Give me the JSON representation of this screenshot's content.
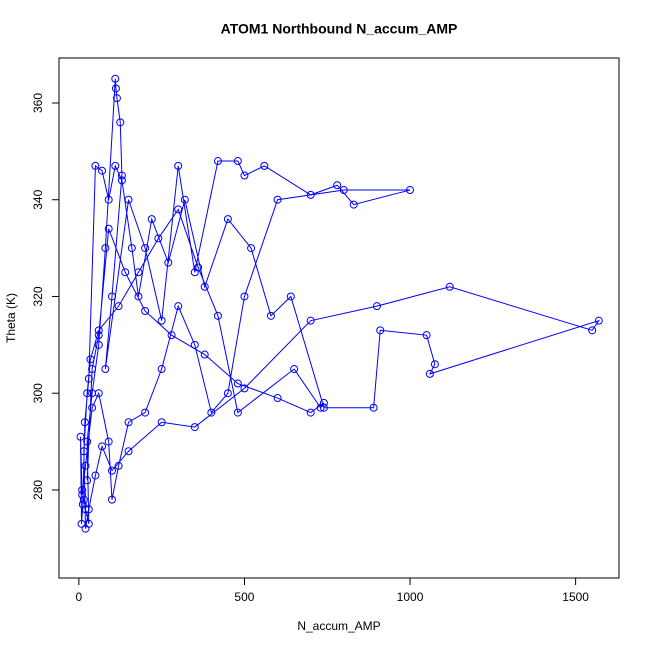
{
  "chart_data": {
    "type": "line-points",
    "title": "ATOM1 Northbound N_accum_AMP",
    "x_label": "N_accum_AMP",
    "y_label": "Theta (K)",
    "color": "#0000ff",
    "x": [
      10,
      15,
      20,
      30,
      25,
      40,
      60,
      80,
      110,
      112,
      115,
      125,
      130,
      100,
      80,
      150,
      200,
      250,
      300,
      350,
      420,
      480,
      500,
      560,
      700,
      780,
      830,
      1000,
      800,
      600,
      500,
      450,
      400,
      350,
      300,
      250,
      200,
      150,
      120,
      100,
      90,
      60,
      40,
      20,
      10,
      5,
      8,
      12,
      18,
      30,
      50,
      70,
      90,
      110,
      130,
      160,
      180,
      220,
      270,
      320,
      380,
      450,
      520,
      580,
      640,
      740,
      890,
      910,
      1050,
      1075,
      1060,
      1570,
      1550,
      1120,
      900,
      700,
      500,
      350,
      250,
      150,
      100,
      70,
      50,
      30,
      20,
      15,
      25,
      35,
      60,
      120,
      180,
      240,
      300,
      360,
      420,
      480,
      650,
      730,
      740,
      700,
      600,
      480,
      380,
      280,
      200,
      140,
      90,
      60,
      40,
      25
    ],
    "values": [
      280,
      278,
      276,
      273,
      290,
      300,
      310,
      330,
      365,
      363,
      361,
      356,
      345,
      320,
      305,
      340,
      330,
      315,
      347,
      325,
      348,
      348,
      345,
      347,
      341,
      343,
      339,
      342,
      342,
      340,
      320,
      300,
      296,
      310,
      318,
      305,
      296,
      294,
      285,
      278,
      290,
      300,
      297,
      285,
      279,
      291,
      273,
      277,
      294,
      303,
      347,
      346,
      340,
      347,
      344,
      330,
      320,
      336,
      327,
      340,
      322,
      336,
      330,
      316,
      320,
      297,
      297,
      313,
      312,
      306,
      304,
      315,
      313,
      322,
      318,
      315,
      301,
      293,
      294,
      288,
      284,
      289,
      283,
      276,
      272,
      288,
      300,
      307,
      313,
      318,
      325,
      332,
      338,
      326,
      316,
      296,
      305,
      297,
      298,
      296,
      299,
      302,
      308,
      312,
      317,
      325,
      334,
      312,
      305,
      282
    ],
    "xlim": [
      -60,
      1631
    ],
    "ylim": [
      261.8,
      369.3
    ],
    "xticks": [
      0,
      500,
      1000,
      1500
    ],
    "yticks": [
      280,
      300,
      320,
      340,
      360
    ]
  }
}
